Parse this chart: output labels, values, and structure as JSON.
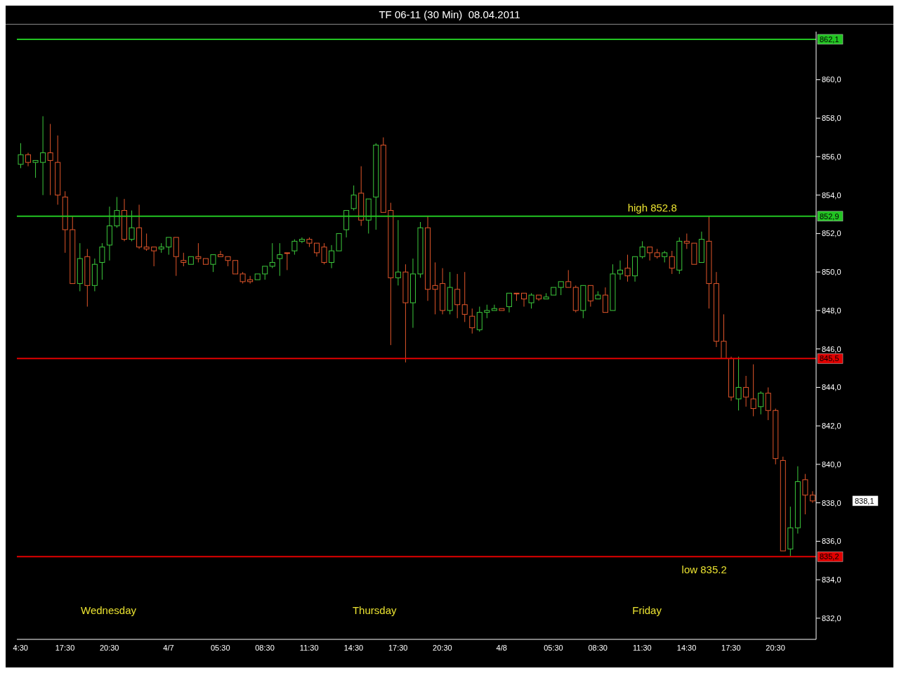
{
  "chart_data": {
    "type": "candlestick",
    "title": "TF 06-11 (30 Min)  08.04.2011",
    "categories": [
      "4:30",
      null,
      null,
      null,
      null,
      null,
      "17:30",
      null,
      null,
      null,
      null,
      null,
      "20:30",
      null,
      null,
      null,
      null,
      null,
      null,
      null,
      "4/7",
      null,
      null,
      null,
      null,
      null,
      null,
      "05:30",
      null,
      null,
      null,
      null,
      null,
      "08:30",
      null,
      null,
      null,
      null,
      null,
      "11:30",
      null,
      null,
      null,
      null,
      null,
      "14:30",
      null,
      null,
      null,
      null,
      null,
      "17:30",
      null,
      null,
      null,
      null,
      null,
      "20:30",
      null,
      null,
      null,
      null,
      null,
      null,
      null,
      "4/8",
      null,
      null,
      null,
      null,
      null,
      null,
      "05:30",
      null,
      null,
      null,
      null,
      null,
      "08:30",
      null,
      null,
      null,
      null,
      null,
      "11:30",
      null,
      null,
      null,
      null,
      null,
      "14:30",
      null,
      null,
      null,
      null,
      null,
      "17:30",
      null,
      null,
      null,
      null,
      null,
      "20:30",
      null,
      null,
      null,
      null,
      null
    ],
    "ohlc": [
      [
        855.6,
        856.7,
        855.4,
        856.1
      ],
      [
        856.1,
        856.2,
        855.5,
        855.7
      ],
      [
        855.7,
        855.8,
        854.9,
        855.8
      ],
      [
        855.7,
        858.1,
        854.0,
        856.2
      ],
      [
        856.2,
        857.7,
        854.0,
        855.8
      ],
      [
        855.7,
        857.1,
        853.5,
        854.0
      ],
      [
        853.9,
        854.2,
        851.0,
        852.2
      ],
      [
        852.2,
        852.9,
        849.4,
        849.4
      ],
      [
        849.4,
        851.5,
        849.0,
        850.7
      ],
      [
        850.8,
        851.2,
        848.2,
        849.3
      ],
      [
        849.3,
        850.7,
        849.0,
        850.4
      ],
      [
        850.5,
        851.5,
        849.6,
        851.3
      ],
      [
        851.4,
        853.4,
        850.6,
        852.4
      ],
      [
        852.4,
        853.9,
        852.3,
        853.2
      ],
      [
        853.2,
        853.8,
        851.6,
        851.7
      ],
      [
        851.7,
        853.2,
        851.6,
        852.3
      ],
      [
        852.3,
        853.5,
        851.2,
        851.3
      ],
      [
        851.3,
        852.0,
        851.1,
        851.2
      ],
      [
        851.3,
        851.3,
        850.3,
        851.1
      ],
      [
        851.2,
        851.5,
        851.0,
        851.3
      ],
      [
        851.3,
        851.8,
        850.9,
        851.8
      ],
      [
        851.8,
        851.8,
        849.8,
        850.8
      ],
      [
        850.6,
        851.0,
        850.3,
        850.5
      ],
      [
        850.4,
        850.8,
        850.4,
        850.8
      ],
      [
        850.8,
        851.5,
        850.5,
        850.7
      ],
      [
        850.7,
        850.7,
        850.4,
        850.4
      ],
      [
        850.4,
        850.9,
        850.0,
        850.9
      ],
      [
        850.9,
        851.1,
        850.8,
        850.8
      ],
      [
        850.8,
        850.8,
        850.3,
        850.6
      ],
      [
        850.6,
        850.6,
        849.9,
        849.9
      ],
      [
        849.9,
        850.0,
        849.4,
        849.5
      ],
      [
        849.6,
        849.8,
        849.4,
        849.5
      ],
      [
        849.6,
        849.9,
        849.6,
        849.9
      ],
      [
        849.9,
        850.3,
        849.6,
        850.3
      ],
      [
        850.3,
        851.5,
        850.2,
        850.5
      ],
      [
        850.7,
        851.5,
        849.8,
        850.9
      ],
      [
        851.0,
        851.0,
        850.1,
        851.0
      ],
      [
        851.1,
        851.7,
        850.9,
        851.6
      ],
      [
        851.6,
        851.8,
        851.5,
        851.7
      ],
      [
        851.7,
        851.8,
        851.3,
        851.5
      ],
      [
        851.5,
        851.5,
        850.8,
        851.0
      ],
      [
        851.3,
        851.5,
        850.4,
        850.5
      ],
      [
        850.5,
        851.4,
        850.2,
        851.1
      ],
      [
        851.1,
        852.0,
        851.1,
        852.0
      ],
      [
        852.2,
        853.2,
        851.8,
        853.2
      ],
      [
        853.3,
        854.5,
        853.2,
        854.0
      ],
      [
        854.1,
        855.5,
        852.4,
        852.7
      ],
      [
        852.7,
        853.8,
        852.0,
        853.8
      ],
      [
        853.9,
        856.7,
        852.2,
        856.6
      ],
      [
        856.6,
        857.0,
        853.1,
        853.1
      ],
      [
        853.2,
        853.6,
        846.2,
        849.7
      ],
      [
        849.7,
        852.7,
        849.3,
        850.0
      ],
      [
        850.0,
        850.4,
        845.3,
        848.4
      ],
      [
        848.4,
        850.7,
        847.1,
        849.9
      ],
      [
        849.9,
        852.6,
        849.7,
        852.3
      ],
      [
        852.3,
        852.9,
        848.5,
        849.1
      ],
      [
        849.3,
        850.5,
        847.8,
        849.1
      ],
      [
        849.4,
        850.2,
        847.8,
        848.0
      ],
      [
        848.0,
        850.0,
        847.8,
        849.2
      ],
      [
        849.1,
        849.9,
        847.6,
        848.3
      ],
      [
        848.3,
        850.0,
        847.4,
        847.8
      ],
      [
        847.7,
        848.1,
        846.8,
        847.1
      ],
      [
        847.0,
        848.2,
        846.9,
        847.9
      ],
      [
        847.9,
        848.3,
        847.6,
        848.0
      ],
      [
        848.0,
        848.3,
        848.0,
        848.1
      ],
      [
        848.1,
        848.1,
        848.0,
        848.0
      ],
      [
        848.2,
        848.9,
        847.9,
        848.9
      ],
      [
        848.9,
        848.9,
        848.5,
        848.9
      ],
      [
        848.9,
        848.9,
        848.2,
        848.6
      ],
      [
        848.4,
        848.9,
        848.1,
        848.8
      ],
      [
        848.8,
        848.8,
        848.5,
        848.6
      ],
      [
        848.6,
        848.9,
        848.6,
        848.7
      ],
      [
        848.8,
        849.2,
        848.8,
        849.2
      ],
      [
        849.2,
        849.5,
        848.8,
        849.5
      ],
      [
        849.5,
        850.1,
        849.2,
        849.2
      ],
      [
        849.2,
        849.3,
        847.9,
        848.0
      ],
      [
        848.0,
        849.3,
        847.6,
        849.3
      ],
      [
        849.3,
        849.3,
        848.2,
        848.5
      ],
      [
        848.6,
        849.0,
        848.6,
        848.8
      ],
      [
        848.8,
        849.2,
        847.9,
        847.9
      ],
      [
        848.0,
        850.4,
        848.0,
        849.9
      ],
      [
        849.9,
        850.6,
        849.6,
        850.1
      ],
      [
        850.2,
        850.9,
        849.5,
        849.8
      ],
      [
        849.8,
        850.8,
        849.5,
        850.8
      ],
      [
        850.8,
        851.6,
        850.7,
        851.3
      ],
      [
        851.3,
        851.3,
        850.6,
        851.0
      ],
      [
        851.0,
        851.2,
        850.7,
        850.8
      ],
      [
        850.8,
        851.1,
        850.5,
        851.0
      ],
      [
        850.8,
        851.1,
        849.9,
        850.2
      ],
      [
        850.1,
        851.8,
        849.9,
        851.6
      ],
      [
        851.6,
        852.0,
        851.2,
        851.5
      ],
      [
        851.5,
        851.5,
        850.4,
        850.4
      ],
      [
        850.5,
        852.1,
        850.5,
        851.7
      ],
      [
        851.6,
        852.9,
        848.1,
        849.4
      ],
      [
        849.4,
        850.0,
        846.1,
        846.4
      ],
      [
        846.4,
        847.8,
        845.5,
        845.5
      ],
      [
        845.5,
        845.6,
        843.3,
        843.5
      ],
      [
        843.4,
        845.6,
        842.8,
        844.0
      ],
      [
        844.0,
        844.6,
        843.0,
        843.5
      ],
      [
        843.4,
        845.2,
        842.5,
        842.9
      ],
      [
        843.0,
        843.8,
        842.6,
        843.7
      ],
      [
        843.7,
        844.0,
        842.3,
        842.8
      ],
      [
        842.8,
        842.9,
        840.0,
        840.3
      ],
      [
        840.2,
        840.4,
        835.5,
        835.5
      ],
      [
        835.6,
        837.8,
        835.2,
        836.7
      ],
      [
        836.7,
        839.9,
        836.4,
        839.1
      ],
      [
        839.2,
        839.5,
        837.4,
        838.4
      ],
      [
        838.4,
        838.6,
        838.0,
        838.1
      ]
    ],
    "colors": [
      "#3cc83c",
      "#e0552a",
      "#3cc83c",
      "#3cc83c",
      "#e0552a",
      "#e0552a",
      "#e0552a",
      "#e0552a",
      "#3cc83c",
      "#e0552a",
      "#3cc83c",
      "#3cc83c",
      "#3cc83c",
      "#3cc83c",
      "#e0552a",
      "#3cc83c",
      "#e0552a",
      "#e0552a",
      "#e0552a",
      "#3cc83c",
      "#3cc83c",
      "#e0552a",
      "#e0552a",
      "#3cc83c",
      "#e0552a",
      "#e0552a",
      "#3cc83c",
      "#e0552a",
      "#e0552a",
      "#e0552a",
      "#e0552a",
      "#e0552a",
      "#3cc83c",
      "#3cc83c",
      "#3cc83c",
      "#3cc83c",
      "#e0552a",
      "#3cc83c",
      "#3cc83c",
      "#e0552a",
      "#e0552a",
      "#e0552a",
      "#3cc83c",
      "#3cc83c",
      "#3cc83c",
      "#3cc83c",
      "#e0552a",
      "#3cc83c",
      "#3cc83c",
      "#e0552a",
      "#e0552a",
      "#3cc83c",
      "#e0552a",
      "#3cc83c",
      "#3cc83c",
      "#e0552a",
      "#e0552a",
      "#e0552a",
      "#3cc83c",
      "#e0552a",
      "#e0552a",
      "#e0552a",
      "#3cc83c",
      "#3cc83c",
      "#3cc83c",
      "#e0552a",
      "#3cc83c",
      "#e0552a",
      "#e0552a",
      "#3cc83c",
      "#e0552a",
      "#3cc83c",
      "#3cc83c",
      "#3cc83c",
      "#e0552a",
      "#e0552a",
      "#3cc83c",
      "#e0552a",
      "#3cc83c",
      "#e0552a",
      "#3cc83c",
      "#3cc83c",
      "#e0552a",
      "#3cc83c",
      "#3cc83c",
      "#e0552a",
      "#e0552a",
      "#3cc83c",
      "#e0552a",
      "#3cc83c",
      "#e0552a",
      "#e0552a",
      "#3cc83c",
      "#e0552a",
      "#e0552a",
      "#e0552a",
      "#e0552a",
      "#3cc83c",
      "#e0552a",
      "#e0552a",
      "#3cc83c",
      "#e0552a",
      "#e0552a",
      "#e0552a",
      "#3cc83c",
      "#3cc83c",
      "#e0552a",
      "#e0552a"
    ],
    "ylim": [
      830.9,
      862.5
    ],
    "yticks": [
      {
        "value": 832,
        "label": "832,0"
      },
      {
        "value": 834,
        "label": "834,0"
      },
      {
        "value": 836,
        "label": "836,0"
      },
      {
        "value": 838,
        "label": "838,0"
      },
      {
        "value": 840,
        "label": "840,0"
      },
      {
        "value": 842,
        "label": "842,0"
      },
      {
        "value": 844,
        "label": "844,0"
      },
      {
        "value": 846,
        "label": "846,0"
      },
      {
        "value": 848,
        "label": "848,0"
      },
      {
        "value": 850,
        "label": "850,0"
      },
      {
        "value": 852,
        "label": "852,0"
      },
      {
        "value": 854,
        "label": "854,0"
      },
      {
        "value": 856,
        "label": "856,0"
      },
      {
        "value": 858,
        "label": "858,0"
      },
      {
        "value": 860,
        "label": "860,0"
      }
    ],
    "ref_lines": [
      {
        "axis": "y",
        "value": 862.1,
        "label": "862,1",
        "color": "#22c422"
      },
      {
        "axis": "y",
        "value": 852.9,
        "label": "852,9",
        "color": "#22c422"
      },
      {
        "axis": "y",
        "value": 845.5,
        "label": "845,5",
        "color": "#e00000"
      },
      {
        "axis": "y",
        "value": 835.2,
        "label": "835,2",
        "color": "#e00000"
      }
    ],
    "annotations": [
      {
        "text": "high 852.8",
        "y": 852.8
      },
      {
        "text": "low 835.2",
        "y": 835.2
      },
      "838,1",
      "Wednesday",
      "Thursday",
      "Friday"
    ]
  }
}
